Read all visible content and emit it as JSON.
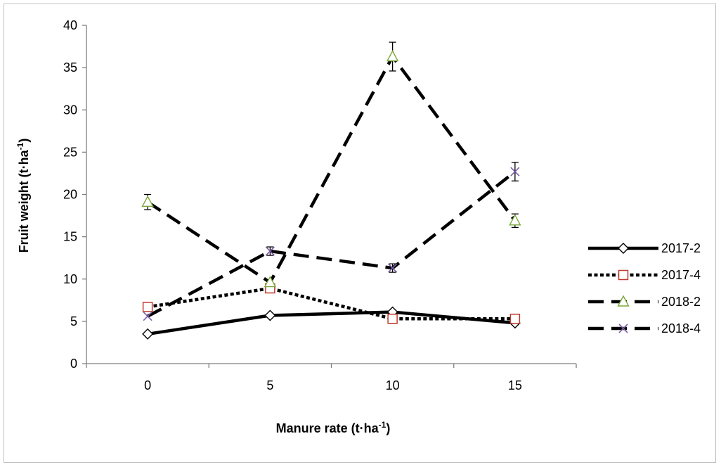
{
  "chart_data": {
    "type": "line",
    "title": "",
    "xlabel": {
      "main": "Manure rate (t·ha",
      "sup": "-1",
      "end": ")"
    },
    "ylabel": {
      "main": "Fruit weight (t·ha",
      "sup": "-1",
      "end": ")"
    },
    "x": [
      0,
      5,
      10,
      15
    ],
    "xlim": [
      -2.5,
      17.5
    ],
    "ylim": [
      0,
      40
    ],
    "yticks": [
      0,
      5,
      10,
      15,
      20,
      25,
      30,
      35,
      40
    ],
    "grid": false,
    "legend_position": "right",
    "series": [
      {
        "name": "2017-2",
        "values": [
          3.5,
          5.7,
          6.1,
          4.8
        ],
        "errors": [
          0,
          0,
          0,
          0
        ],
        "line": "solid",
        "marker": "diamond",
        "color": "#000000",
        "marker_color": "#000000"
      },
      {
        "name": "2017-4",
        "values": [
          6.7,
          8.9,
          5.3,
          5.3
        ],
        "errors": [
          0,
          0,
          0,
          0
        ],
        "line": "dotted",
        "marker": "square",
        "color": "#000000",
        "marker_color": "#c0392b"
      },
      {
        "name": "2018-2",
        "values": [
          19.1,
          9.6,
          36.3,
          16.9
        ],
        "errors": [
          0.9,
          0,
          1.7,
          0.8
        ],
        "line": "dashed",
        "marker": "triangle",
        "color": "#000000",
        "marker_color": "#7aa83a"
      },
      {
        "name": "2018-4",
        "values": [
          5.6,
          13.3,
          11.3,
          22.7
        ],
        "errors": [
          0,
          0.5,
          0.5,
          1.1
        ],
        "line": "dashed",
        "marker": "x",
        "color": "#000000",
        "marker_color": "#7b5ea7"
      }
    ]
  }
}
